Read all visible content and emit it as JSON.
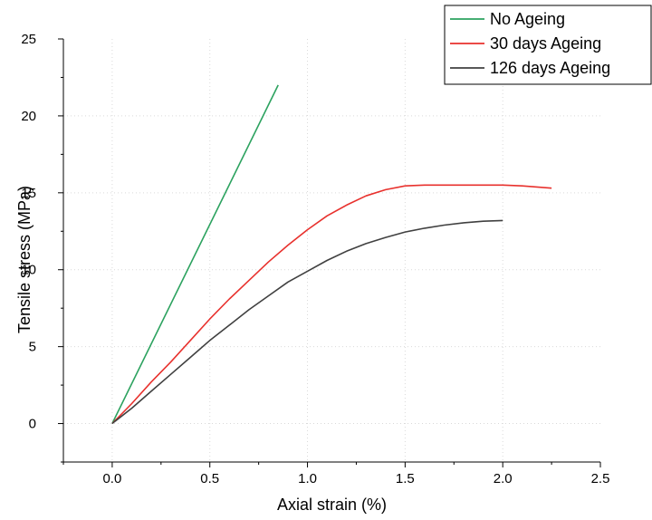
{
  "chart_data": {
    "type": "line",
    "title": "",
    "xlabel": "Axial strain (%)",
    "ylabel": "Tensile stress (MPa)",
    "xlim": [
      -0.25,
      2.5
    ],
    "ylim": [
      -2.5,
      25
    ],
    "xticks": [
      0.0,
      0.5,
      1.0,
      1.5,
      2.0,
      2.5
    ],
    "xtick_labels": [
      "0.0",
      "0.5",
      "1.0",
      "1.5",
      "2.0",
      "2.5"
    ],
    "yticks": [
      0,
      5,
      10,
      15,
      20,
      25
    ],
    "ytick_labels": [
      "0",
      "5",
      "10",
      "15",
      "20",
      "25"
    ],
    "grid": "dotted",
    "legend_position": "top-right",
    "series": [
      {
        "name": "No Ageing",
        "color": "#2ca25f",
        "x": [
          0.0,
          0.85
        ],
        "y": [
          0.0,
          22.0
        ]
      },
      {
        "name": "30 days Ageing",
        "color": "#e8312d",
        "x": [
          0.0,
          0.1,
          0.2,
          0.3,
          0.4,
          0.5,
          0.6,
          0.7,
          0.8,
          0.9,
          1.0,
          1.1,
          1.2,
          1.3,
          1.4,
          1.5,
          1.6,
          1.7,
          1.8,
          1.9,
          2.0,
          2.1,
          2.25
        ],
        "y": [
          0.0,
          1.3,
          2.7,
          4.0,
          5.4,
          6.8,
          8.1,
          9.3,
          10.5,
          11.6,
          12.6,
          13.5,
          14.2,
          14.8,
          15.2,
          15.45,
          15.5,
          15.5,
          15.5,
          15.5,
          15.5,
          15.45,
          15.3
        ]
      },
      {
        "name": "126 days Ageing",
        "color": "#404040",
        "x": [
          0.0,
          0.1,
          0.2,
          0.3,
          0.4,
          0.5,
          0.6,
          0.7,
          0.8,
          0.9,
          1.0,
          1.1,
          1.2,
          1.3,
          1.4,
          1.5,
          1.6,
          1.7,
          1.8,
          1.9,
          2.0
        ],
        "y": [
          0.0,
          1.0,
          2.1,
          3.2,
          4.3,
          5.4,
          6.4,
          7.4,
          8.3,
          9.2,
          9.9,
          10.6,
          11.2,
          11.7,
          12.1,
          12.45,
          12.7,
          12.9,
          13.05,
          13.15,
          13.2
        ]
      }
    ]
  }
}
